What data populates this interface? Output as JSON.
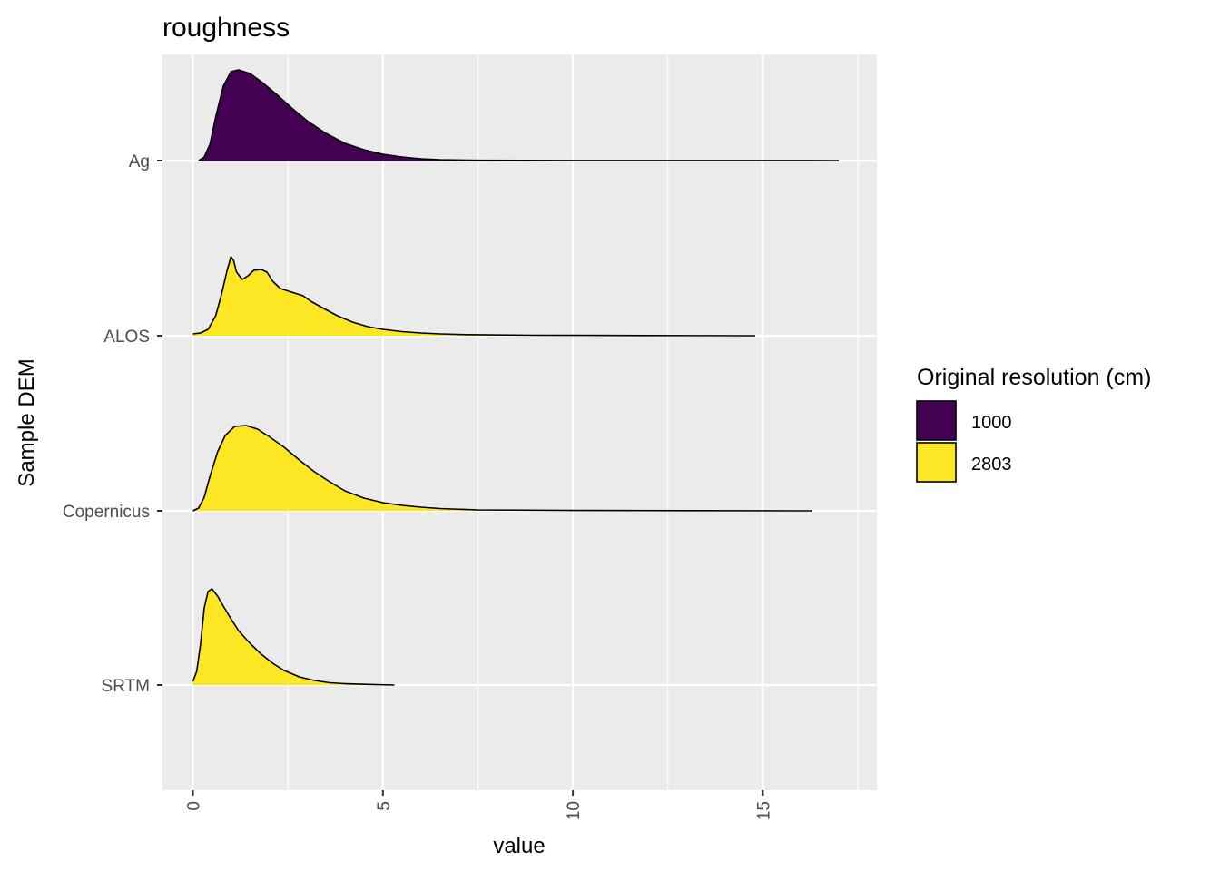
{
  "chart_data": {
    "type": "ridgeline-density",
    "title": "roughness",
    "xlabel": "value",
    "ylabel": "Sample DEM",
    "xlim": [
      -0.8,
      18
    ],
    "x_ticks": [
      0,
      5,
      10,
      15
    ],
    "y_categories": [
      "Ag",
      "ALOS",
      "Copernicus",
      "SRTM"
    ],
    "grid": true,
    "legend": {
      "title": "Original resolution (cm)",
      "placement": "right",
      "items": [
        {
          "label": "1000",
          "color": "#440154"
        },
        {
          "label": "2803",
          "color": "#fde725"
        }
      ]
    },
    "series": [
      {
        "category": "Ag",
        "resolution": "1000",
        "color": "#440154",
        "density": [
          [
            0.15,
            0.0
          ],
          [
            0.3,
            0.04
          ],
          [
            0.45,
            0.18
          ],
          [
            0.6,
            0.48
          ],
          [
            0.8,
            0.82
          ],
          [
            1.0,
            0.98
          ],
          [
            1.2,
            1.0
          ],
          [
            1.5,
            0.96
          ],
          [
            1.8,
            0.87
          ],
          [
            2.2,
            0.73
          ],
          [
            2.6,
            0.58
          ],
          [
            3.0,
            0.44
          ],
          [
            3.5,
            0.3
          ],
          [
            4.0,
            0.19
          ],
          [
            4.5,
            0.12
          ],
          [
            5.0,
            0.07
          ],
          [
            5.5,
            0.04
          ],
          [
            6.0,
            0.02
          ],
          [
            6.5,
            0.01
          ],
          [
            7.5,
            0.003
          ],
          [
            10.0,
            0.001
          ],
          [
            14.0,
            0.0005
          ],
          [
            17.0,
            0.0
          ]
        ]
      },
      {
        "category": "ALOS",
        "resolution": "2803",
        "color": "#fde725",
        "density": [
          [
            0.0,
            0.02
          ],
          [
            0.2,
            0.03
          ],
          [
            0.4,
            0.07
          ],
          [
            0.6,
            0.22
          ],
          [
            0.75,
            0.45
          ],
          [
            0.9,
            0.72
          ],
          [
            1.0,
            0.87
          ],
          [
            1.07,
            0.83
          ],
          [
            1.15,
            0.7
          ],
          [
            1.3,
            0.62
          ],
          [
            1.45,
            0.66
          ],
          [
            1.6,
            0.72
          ],
          [
            1.8,
            0.73
          ],
          [
            1.95,
            0.7
          ],
          [
            2.1,
            0.6
          ],
          [
            2.3,
            0.52
          ],
          [
            2.6,
            0.48
          ],
          [
            2.9,
            0.44
          ],
          [
            3.1,
            0.38
          ],
          [
            3.4,
            0.31
          ],
          [
            3.8,
            0.22
          ],
          [
            4.2,
            0.15
          ],
          [
            4.6,
            0.1
          ],
          [
            5.0,
            0.07
          ],
          [
            5.5,
            0.045
          ],
          [
            6.0,
            0.03
          ],
          [
            6.5,
            0.02
          ],
          [
            7.2,
            0.012
          ],
          [
            9.0,
            0.005
          ],
          [
            12.0,
            0.002
          ],
          [
            14.8,
            0.0
          ]
        ]
      },
      {
        "category": "Copernicus",
        "resolution": "2803",
        "color": "#fde725",
        "density": [
          [
            0.0,
            0.0
          ],
          [
            0.15,
            0.03
          ],
          [
            0.3,
            0.15
          ],
          [
            0.45,
            0.38
          ],
          [
            0.65,
            0.65
          ],
          [
            0.85,
            0.83
          ],
          [
            1.1,
            0.93
          ],
          [
            1.4,
            0.94
          ],
          [
            1.7,
            0.9
          ],
          [
            2.0,
            0.82
          ],
          [
            2.4,
            0.7
          ],
          [
            2.8,
            0.56
          ],
          [
            3.2,
            0.43
          ],
          [
            3.6,
            0.32
          ],
          [
            4.0,
            0.22
          ],
          [
            4.5,
            0.14
          ],
          [
            5.0,
            0.09
          ],
          [
            5.5,
            0.06
          ],
          [
            6.0,
            0.04
          ],
          [
            6.5,
            0.025
          ],
          [
            7.5,
            0.01
          ],
          [
            10.0,
            0.004
          ],
          [
            13.0,
            0.002
          ],
          [
            16.3,
            0.0
          ]
        ]
      },
      {
        "category": "SRTM",
        "resolution": "2803",
        "color": "#fde725",
        "density": [
          [
            0.0,
            0.04
          ],
          [
            0.1,
            0.15
          ],
          [
            0.2,
            0.45
          ],
          [
            0.3,
            0.85
          ],
          [
            0.4,
            1.03
          ],
          [
            0.5,
            1.06
          ],
          [
            0.65,
            0.98
          ],
          [
            0.8,
            0.87
          ],
          [
            1.0,
            0.73
          ],
          [
            1.2,
            0.6
          ],
          [
            1.5,
            0.46
          ],
          [
            1.8,
            0.34
          ],
          [
            2.1,
            0.24
          ],
          [
            2.4,
            0.16
          ],
          [
            2.8,
            0.09
          ],
          [
            3.2,
            0.05
          ],
          [
            3.6,
            0.025
          ],
          [
            4.0,
            0.015
          ],
          [
            4.5,
            0.008
          ],
          [
            5.3,
            0.0
          ]
        ]
      }
    ]
  }
}
